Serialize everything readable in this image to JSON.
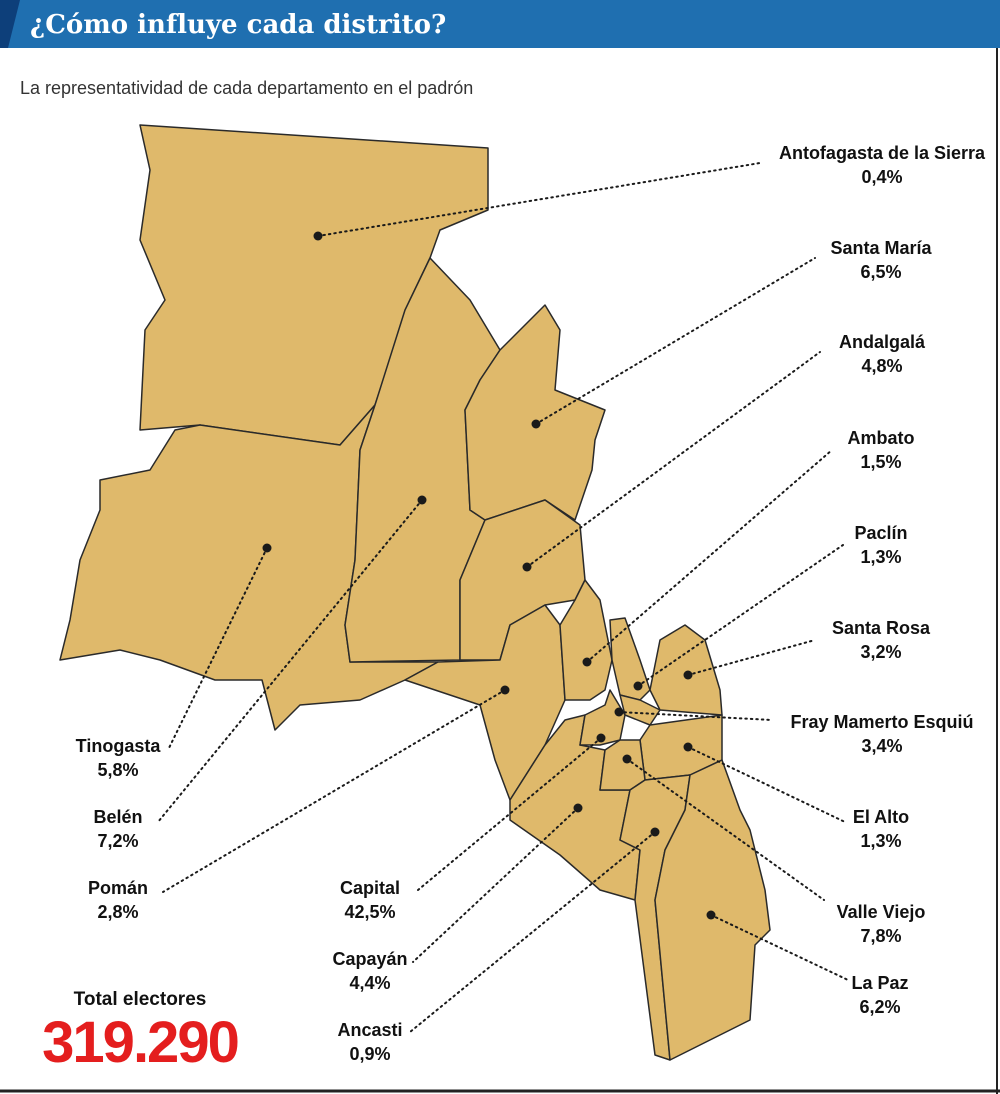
{
  "header": {
    "title": "¿Cómo influye cada distrito?",
    "subtitle": "La representatividad de cada departamento en el padrón"
  },
  "districts": [
    {
      "name": "Antofagasta de la Sierra",
      "share": "0,4%"
    },
    {
      "name": "Santa María",
      "share": "6,5%"
    },
    {
      "name": "Andalgalá",
      "share": "4,8%"
    },
    {
      "name": "Ambato",
      "share": "1,5%"
    },
    {
      "name": "Paclín",
      "share": "1,3%"
    },
    {
      "name": "Santa Rosa",
      "share": "3,2%"
    },
    {
      "name": "Fray Mamerto Esquiú",
      "share": "3,4%"
    },
    {
      "name": "El Alto",
      "share": "1,3%"
    },
    {
      "name": "Valle Viejo",
      "share": "7,8%"
    },
    {
      "name": "La Paz",
      "share": "6,2%"
    },
    {
      "name": "Tinogasta",
      "share": "5,8%"
    },
    {
      "name": "Belén",
      "share": "7,2%"
    },
    {
      "name": "Pomán",
      "share": "2,8%"
    },
    {
      "name": "Capital",
      "share": "42,5%"
    },
    {
      "name": "Capayán",
      "share": "4,4%"
    },
    {
      "name": "Ancasti",
      "share": "0,9%"
    }
  ],
  "total": {
    "label": "Total electores",
    "value": "319.290"
  }
}
